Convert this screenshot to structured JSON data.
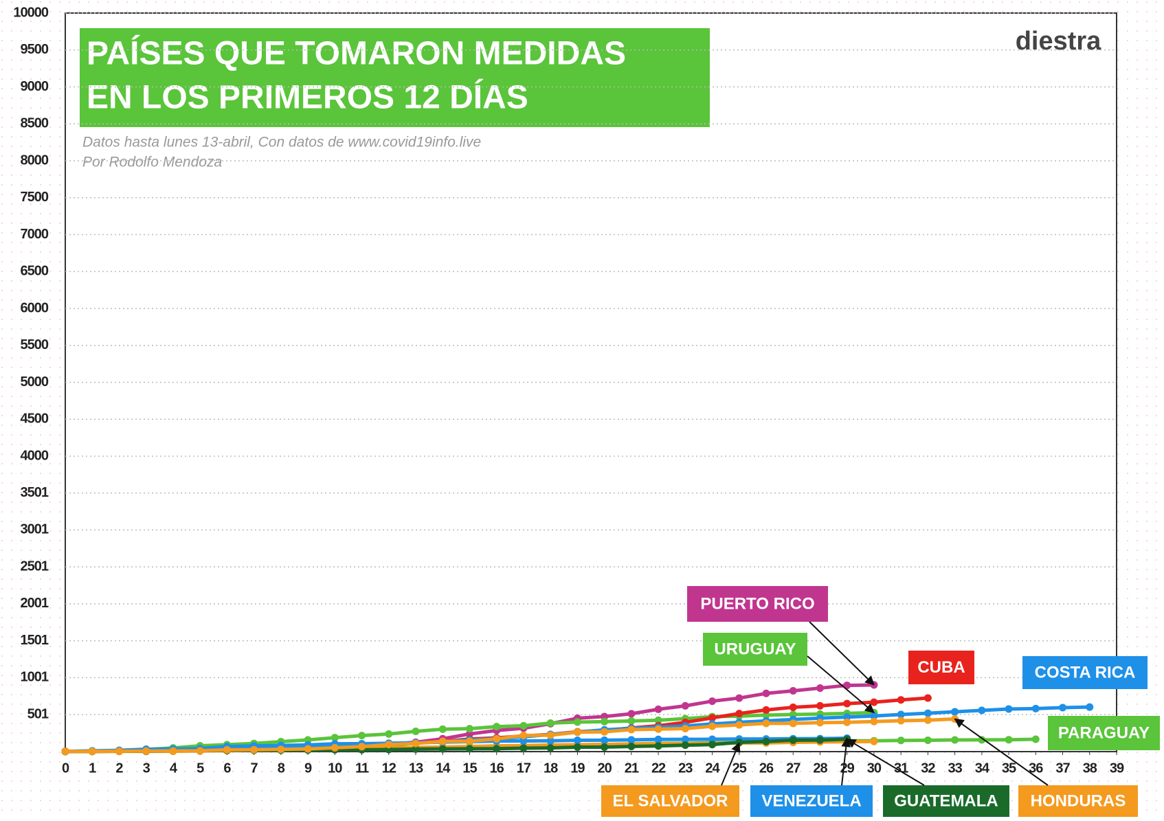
{
  "chart_data": {
    "type": "line",
    "title": [
      "PAÍSES QUE TOMARON MEDIDAS",
      "EN LOS PRIMEROS 12 DÍAS"
    ],
    "subtitle": [
      "Datos hasta lunes 13-abril, Con datos de www.covid19info.live",
      "Por Rodolfo Mendoza"
    ],
    "logo": "diestra",
    "xlim": [
      0,
      39
    ],
    "xticks": [
      0,
      1,
      2,
      3,
      4,
      5,
      6,
      7,
      8,
      9,
      10,
      11,
      12,
      13,
      14,
      15,
      16,
      17,
      18,
      19,
      20,
      21,
      22,
      23,
      24,
      25,
      26,
      27,
      28,
      29,
      30,
      31,
      32,
      33,
      34,
      35,
      36,
      37,
      38,
      39
    ],
    "ylim": [
      0,
      10000
    ],
    "yticks": [
      501,
      1001,
      1501,
      2001,
      2501,
      3001,
      3501,
      4000,
      4500,
      5000,
      5500,
      6000,
      6500,
      7000,
      7500,
      8000,
      8500,
      9000,
      9500,
      10000
    ],
    "grid": true,
    "series": [
      {
        "name": "PUERTO RICO",
        "color": "#c0368f",
        "values": [
          3,
          5,
          6,
          8,
          14,
          21,
          23,
          31,
          39,
          51,
          64,
          79,
          100,
          127,
          174,
          239,
          286,
          316,
          378,
          452,
          475,
          513,
          573,
          620,
          683,
          725,
          788,
          823,
          860,
          897,
          903
        ]
      },
      {
        "name": "URUGUAY",
        "color": "#5ac43a",
        "values": [
          4,
          8,
          15,
          29,
          50,
          79,
          94,
          110,
          135,
          158,
          189,
          217,
          238,
          274,
          304,
          310,
          338,
          350,
          386,
          400,
          406,
          415,
          424,
          446,
          473,
          480,
          494,
          502,
          508,
          517,
          528
        ]
      },
      {
        "name": "CUBA",
        "color": "#e8231e",
        "values": [
          3,
          4,
          5,
          7,
          11,
          16,
          21,
          35,
          40,
          48,
          57,
          67,
          80,
          119,
          139,
          170,
          186,
          212,
          233,
          269,
          288,
          320,
          350,
          396,
          457,
          515,
          564,
          600,
          620,
          650,
          669,
          700,
          726
        ]
      },
      {
        "name": "COSTA RICA",
        "color": "#1e90e8",
        "values": [
          1,
          5,
          9,
          13,
          23,
          26,
          27,
          35,
          41,
          50,
          69,
          87,
          113,
          117,
          134,
          158,
          177,
          201,
          231,
          263,
          295,
          314,
          330,
          347,
          375,
          396,
          416,
          435,
          454,
          467,
          483,
          502,
          520,
          539,
          558,
          577,
          583,
          595,
          603
        ]
      },
      {
        "name": "PARAGUAY",
        "color": "#5ac43a",
        "values": [
          1,
          2,
          5,
          6,
          9,
          11,
          18,
          22,
          22,
          27,
          37,
          46,
          52,
          56,
          59,
          64,
          65,
          69,
          77,
          92,
          96,
          104,
          112,
          113,
          119,
          124,
          129,
          133,
          134,
          147,
          147,
          151,
          154,
          158,
          159,
          161,
          167
        ]
      },
      {
        "name": "EL SALVADOR",
        "color": "#f49a1f",
        "values": [
          1,
          1,
          3,
          3,
          5,
          9,
          13,
          19,
          24,
          30,
          32,
          41,
          46,
          56,
          62,
          69,
          78,
          81,
          90,
          93,
          96,
          103,
          106,
          107,
          112,
          117,
          118,
          125,
          130,
          134,
          137
        ]
      },
      {
        "name": "VENEZUELA",
        "color": "#1e90e8",
        "values": [
          2,
          10,
          17,
          33,
          36,
          42,
          70,
          77,
          84,
          91,
          106,
          107,
          113,
          119,
          129,
          135,
          143,
          144,
          146,
          153,
          155,
          159,
          165,
          166,
          167,
          171,
          171,
          175,
          176,
          181
        ]
      },
      {
        "name": "GUATEMALA",
        "color": "#1a6b2a",
        "values": [
          1,
          2,
          6,
          6,
          9,
          12,
          17,
          19,
          20,
          21,
          24,
          25,
          28,
          34,
          36,
          38,
          39,
          47,
          50,
          61,
          61,
          70,
          77,
          87,
          95,
          126,
          137,
          155,
          156,
          167
        ]
      },
      {
        "name": "HONDURAS",
        "color": "#f49a1f",
        "values": [
          2,
          3,
          6,
          8,
          9,
          12,
          24,
          26,
          30,
          36,
          52,
          68,
          95,
          110,
          139,
          141,
          172,
          219,
          222,
          264,
          268,
          298,
          305,
          312,
          343,
          362,
          382,
          382,
          392,
          397,
          407,
          419,
          426,
          442
        ]
      }
    ]
  }
}
